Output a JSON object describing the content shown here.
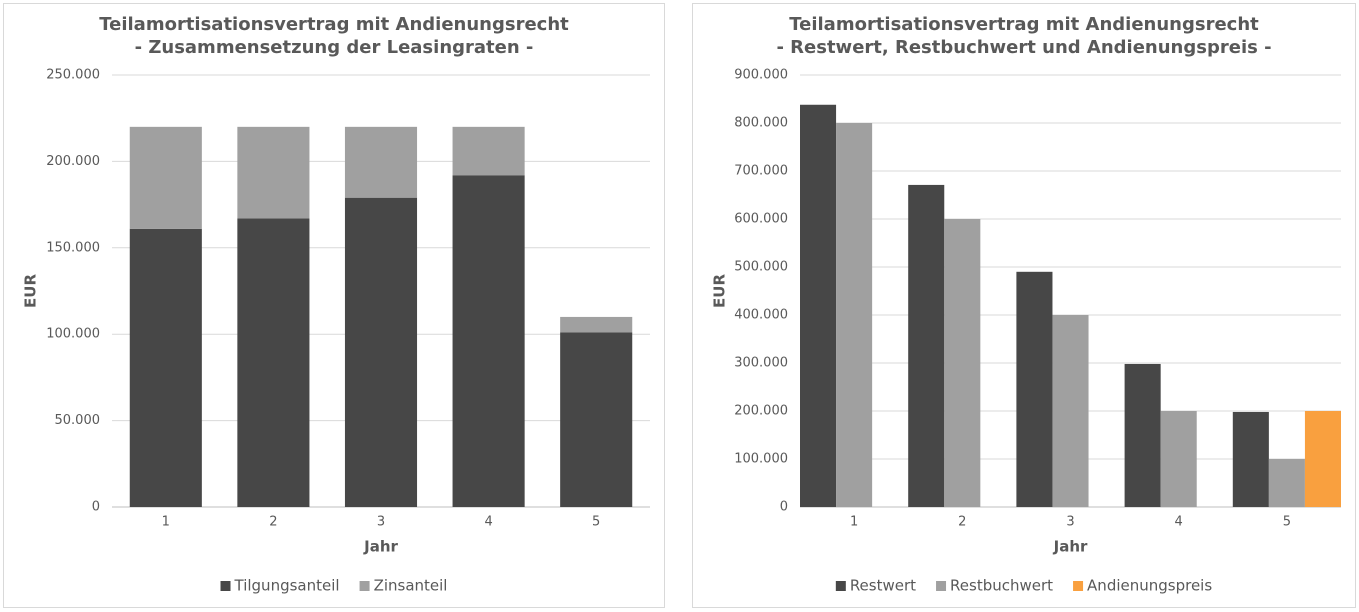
{
  "chart_data": [
    {
      "type": "stacked_bar",
      "title": [
        "Teilamortisationsvertrag mit Andienungsrecht",
        "- Zusammensetzung der Leasingraten -"
      ],
      "x_label": "Jahr",
      "y_label": "EUR",
      "categories": [
        "1",
        "2",
        "3",
        "4",
        "5"
      ],
      "series": [
        {
          "name": "Tilgungsanteil",
          "color": "#474747",
          "values": [
            161000,
            167000,
            179000,
            192000,
            101000
          ]
        },
        {
          "name": "Zinsanteil",
          "color": "#a0a0a0",
          "values": [
            59000,
            53000,
            41000,
            28000,
            9000
          ]
        }
      ],
      "ylim": [
        0,
        250000
      ],
      "yticks": [
        0,
        {
          "value": 50000,
          "label": "50.000"
        },
        {
          "value": 100000,
          "label": "100.000"
        },
        {
          "value": 150000,
          "label": "150.000"
        },
        {
          "value": 200000,
          "label": "200.000"
        },
        {
          "value": 250000,
          "label": "250.000"
        }
      ],
      "grid": true,
      "legend": "bottom"
    },
    {
      "type": "bar",
      "title": [
        "Teilamortisationsvertrag mit Andienungsrecht",
        "- Restwert, Restbuchwert und Andienungspreis -"
      ],
      "x_label": "Jahr",
      "y_label": "EUR",
      "categories": [
        "1",
        "2",
        "3",
        "4",
        "5"
      ],
      "series": [
        {
          "name": "Restwert",
          "color": "#474747",
          "values": [
            838000,
            671000,
            490000,
            298000,
            198000
          ]
        },
        {
          "name": "Restbuchwert",
          "color": "#a0a0a0",
          "values": [
            800000,
            600000,
            400000,
            200000,
            100000
          ]
        },
        {
          "name": "Andienungspreis",
          "color": "#f9a03f",
          "values": [
            null,
            null,
            null,
            null,
            200000
          ]
        }
      ],
      "ylim": [
        0,
        900000
      ],
      "yticks": [
        0,
        {
          "value": 100000,
          "label": "100.000"
        },
        {
          "value": 200000,
          "label": "200.000"
        },
        {
          "value": 300000,
          "label": "300.000"
        },
        {
          "value": 400000,
          "label": "400.000"
        },
        {
          "value": 500000,
          "label": "500.000"
        },
        {
          "value": 600000,
          "label": "600.000"
        },
        {
          "value": 700000,
          "label": "700.000"
        },
        {
          "value": 800000,
          "label": "800.000"
        },
        {
          "value": 900000,
          "label": "900.000"
        }
      ],
      "grid": true,
      "legend": "bottom"
    }
  ]
}
